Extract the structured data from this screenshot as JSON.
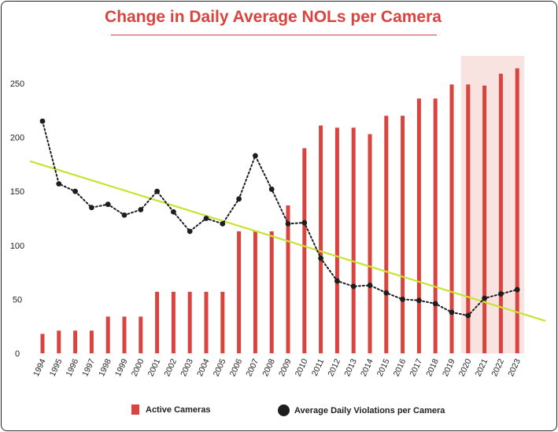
{
  "chart_data": {
    "type": "bar",
    "title": "Change in Daily Average NOLs per Camera",
    "categories": [
      "1994",
      "1995",
      "1996",
      "1997",
      "1998",
      "1999",
      "2000",
      "2001",
      "2002",
      "2003",
      "2004",
      "2005",
      "2006",
      "2007",
      "2008",
      "2009",
      "2010",
      "2011",
      "2012",
      "2013",
      "2014",
      "2015",
      "2016",
      "2017",
      "2018",
      "2019",
      "2020",
      "2021",
      "2022",
      "2023"
    ],
    "series": [
      {
        "name": "Active Cameras",
        "type": "bar",
        "color": "#d9443f",
        "values": [
          18,
          21,
          21,
          21,
          34,
          34,
          34,
          57,
          57,
          57,
          57,
          57,
          113,
          113,
          113,
          137,
          190,
          211,
          209,
          209,
          203,
          220,
          220,
          236,
          236,
          249,
          249,
          248,
          259,
          264
        ]
      },
      {
        "name": "Average Daily Violations per Camera",
        "type": "line",
        "style": "dotted",
        "color": "#1e1e1e",
        "values": [
          215,
          157,
          150,
          135,
          138,
          128,
          133,
          150,
          131,
          113,
          125,
          120,
          143,
          183,
          152,
          120,
          121,
          88,
          67,
          62,
          63,
          56,
          50,
          49,
          46,
          38,
          35,
          51,
          55,
          59
        ]
      }
    ],
    "trendline": {
      "color": "#c8e332",
      "start": 178,
      "end": 30
    },
    "highlight": {
      "from": "2020",
      "to": "2023"
    },
    "yticks": [
      0,
      50,
      100,
      150,
      200,
      250
    ],
    "ylim": [
      0,
      275
    ],
    "xlabel": "",
    "ylabel": "",
    "grid": false,
    "legend": "bottom"
  }
}
